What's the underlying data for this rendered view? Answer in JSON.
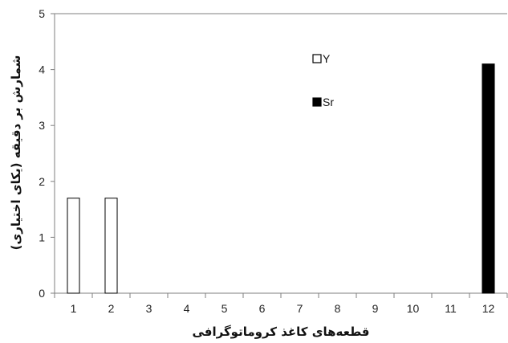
{
  "chart_data": {
    "type": "bar",
    "categories": [
      "1",
      "2",
      "3",
      "4",
      "5",
      "6",
      "7",
      "8",
      "9",
      "10",
      "11",
      "12"
    ],
    "series": [
      {
        "name": "Y",
        "values": [
          1.7,
          1.7,
          0,
          0,
          0,
          0,
          0,
          0,
          0,
          0,
          0,
          0
        ],
        "fill": "#ffffff",
        "stroke": "#000000"
      },
      {
        "name": "Sr",
        "values": [
          0,
          0,
          0,
          0,
          0,
          0,
          0,
          0,
          0,
          0,
          0,
          4.1
        ],
        "fill": "#000000",
        "stroke": "#000000"
      }
    ],
    "xlabel": "قطعه‌های کاغذ کروماتوگرافی",
    "ylabel": "شمارش بر دقیقه (یکای اختیاری)",
    "ylim": [
      0,
      5
    ],
    "yticks": [
      "0",
      "1",
      "2",
      "3",
      "4",
      "5"
    ],
    "grid": false,
    "legend_position": "top-center"
  },
  "colors": {
    "axis": "#7f7f7f",
    "text": "#222222"
  }
}
